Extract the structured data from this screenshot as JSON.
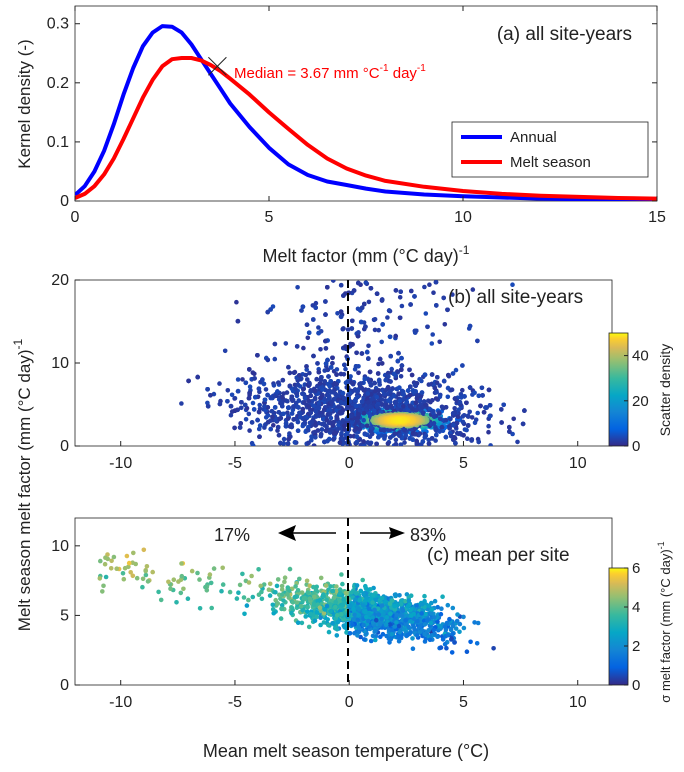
{
  "chart_data": [
    {
      "type": "line",
      "panel_label": "(a) all site-years",
      "xlabel": "Melt factor (mm (°C day)",
      "xlabel_sup": "-1",
      "ylabel": "Kernel density (-)",
      "xlim": [
        0,
        15
      ],
      "ylim": [
        0,
        0.33
      ],
      "xticks": [
        "0",
        "5",
        "10",
        "15"
      ],
      "yticks": [
        "0",
        "0.1",
        "0.2",
        "0.3"
      ],
      "grid": false,
      "legend": "inside-right",
      "annotation": {
        "text": "Median = 3.67 mm °C",
        "sup1": "-1",
        "text2": " day",
        "sup2": "-1",
        "x": 3.67,
        "y": 0.228,
        "color": "#ff0000"
      },
      "series": [
        {
          "name": "Annual",
          "color": "#0000ff",
          "x": [
            0,
            0.25,
            0.5,
            0.75,
            1,
            1.25,
            1.5,
            1.75,
            2,
            2.25,
            2.5,
            2.75,
            3,
            3.25,
            3.5,
            3.75,
            4,
            4.5,
            5,
            5.5,
            6,
            6.5,
            7,
            7.5,
            8,
            9,
            10,
            11,
            12,
            13,
            14,
            15
          ],
          "values": [
            0.01,
            0.025,
            0.05,
            0.085,
            0.13,
            0.18,
            0.225,
            0.262,
            0.285,
            0.296,
            0.295,
            0.285,
            0.265,
            0.24,
            0.215,
            0.19,
            0.165,
            0.125,
            0.09,
            0.062,
            0.044,
            0.033,
            0.027,
            0.021,
            0.016,
            0.011,
            0.008,
            0.006,
            0.004,
            0.003,
            0.002,
            0.002
          ]
        },
        {
          "name": "Melt season",
          "color": "#ff0000",
          "x": [
            0,
            0.25,
            0.5,
            0.75,
            1,
            1.25,
            1.5,
            1.75,
            2,
            2.25,
            2.5,
            2.75,
            3,
            3.25,
            3.5,
            3.75,
            4,
            4.5,
            5,
            5.5,
            6,
            6.5,
            7,
            7.5,
            8,
            9,
            10,
            11,
            12,
            13,
            14,
            15
          ],
          "values": [
            0.005,
            0.012,
            0.025,
            0.045,
            0.072,
            0.105,
            0.14,
            0.175,
            0.205,
            0.228,
            0.24,
            0.242,
            0.242,
            0.238,
            0.23,
            0.22,
            0.207,
            0.18,
            0.15,
            0.122,
            0.095,
            0.072,
            0.055,
            0.043,
            0.034,
            0.024,
            0.017,
            0.012,
            0.009,
            0.007,
            0.005,
            0.004
          ]
        }
      ]
    },
    {
      "type": "scatter",
      "panel_label": "(b) all site-years",
      "ylabel_full": "Melt season melt factor (mm (°C day)",
      "ylabel_sup": "-1",
      "xlim": [
        -12,
        11.5
      ],
      "ylim": [
        0,
        20
      ],
      "xticks": [
        "-10",
        "-5",
        "0",
        "5",
        "10"
      ],
      "yticks": [
        "0",
        "10",
        "20"
      ],
      "colorbar_label": "Scatter density",
      "colorbar_ticks": [
        "0",
        "20",
        "40"
      ],
      "colorbar_range": [
        0,
        50
      ],
      "dashed_line_x": 0,
      "description": "dense cloud peaked near x=2, y=3"
    },
    {
      "type": "scatter",
      "panel_label": "(c) mean per site",
      "xlabel": "Mean melt season temperature (°C)",
      "xlim": [
        -12,
        11.5
      ],
      "ylim": [
        0,
        12
      ],
      "xticks": [
        "-10",
        "-5",
        "0",
        "5",
        "10"
      ],
      "yticks": [
        "0",
        "5",
        "10"
      ],
      "colorbar_label": "σ melt factor (mm (°C day)",
      "colorbar_sup": "-1",
      "colorbar_ticks": [
        "0",
        "2",
        "4",
        "6"
      ],
      "colorbar_range": [
        0,
        6
      ],
      "dashed_line_x": 0,
      "left_pct": "17%",
      "right_pct": "83%"
    }
  ]
}
